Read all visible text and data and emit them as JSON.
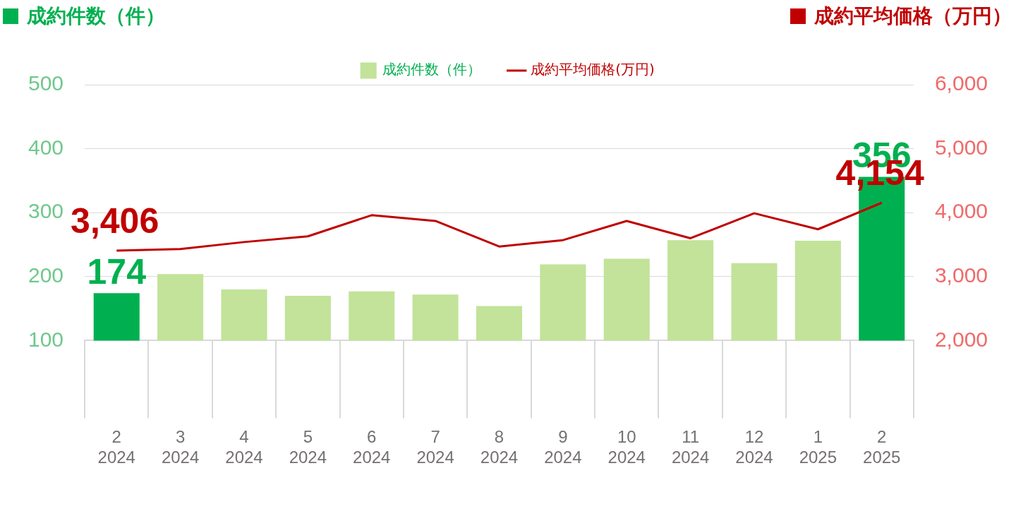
{
  "chart_data": {
    "type": "bar",
    "ylabel": "成約件数（件）",
    "y2label": "成約平均価格（万円）",
    "categories": [
      "2\n2024",
      "3\n2024",
      "4\n2024",
      "5\n2024",
      "6\n2024",
      "7\n2024",
      "8\n2024",
      "9\n2024",
      "10\n2024",
      "11\n2024",
      "12\n2024",
      "1\n2025",
      "2\n2025"
    ],
    "series": [
      {
        "name": "成約件数（件）",
        "color": "#c2e399",
        "colors": [
          "#00b050",
          "#c2e399",
          "#c2e399",
          "#c2e399",
          "#c2e399",
          "#c2e399",
          "#c2e399",
          "#c2e399",
          "#c2e399",
          "#c2e399",
          "#c2e399",
          "#c2e399",
          "#00b050"
        ],
        "values": [
          174,
          204,
          180,
          170,
          177,
          172,
          154,
          219,
          228,
          257,
          221,
          256,
          356
        ],
        "value_labels": [
          "174",
          null,
          null,
          null,
          null,
          null,
          null,
          null,
          null,
          null,
          null,
          null,
          "356"
        ]
      },
      {
        "name": "成約平均価格(万円)",
        "type": "line",
        "axis": "y2",
        "color": "#c00000",
        "values": [
          3406,
          3430,
          3540,
          3630,
          3960,
          3870,
          3470,
          3570,
          3870,
          3600,
          3990,
          3740,
          4154
        ],
        "value_labels": [
          "3,406",
          null,
          null,
          null,
          null,
          null,
          null,
          null,
          null,
          null,
          null,
          null,
          "4,154"
        ]
      }
    ],
    "ylim": [
      100,
      500
    ],
    "yticks": [
      100,
      200,
      300,
      400,
      500
    ],
    "y2lim": [
      2000,
      6000
    ],
    "y2ticks": [
      {
        "value": 2000,
        "label": "2,000"
      },
      {
        "value": 3000,
        "label": "3,000"
      },
      {
        "value": 4000,
        "label": "4,000"
      },
      {
        "value": 5000,
        "label": "5,000"
      },
      {
        "value": 6000,
        "label": "6,000"
      }
    ],
    "grid": "y",
    "legend": "top",
    "marker": "none",
    "line_style": "solid"
  }
}
